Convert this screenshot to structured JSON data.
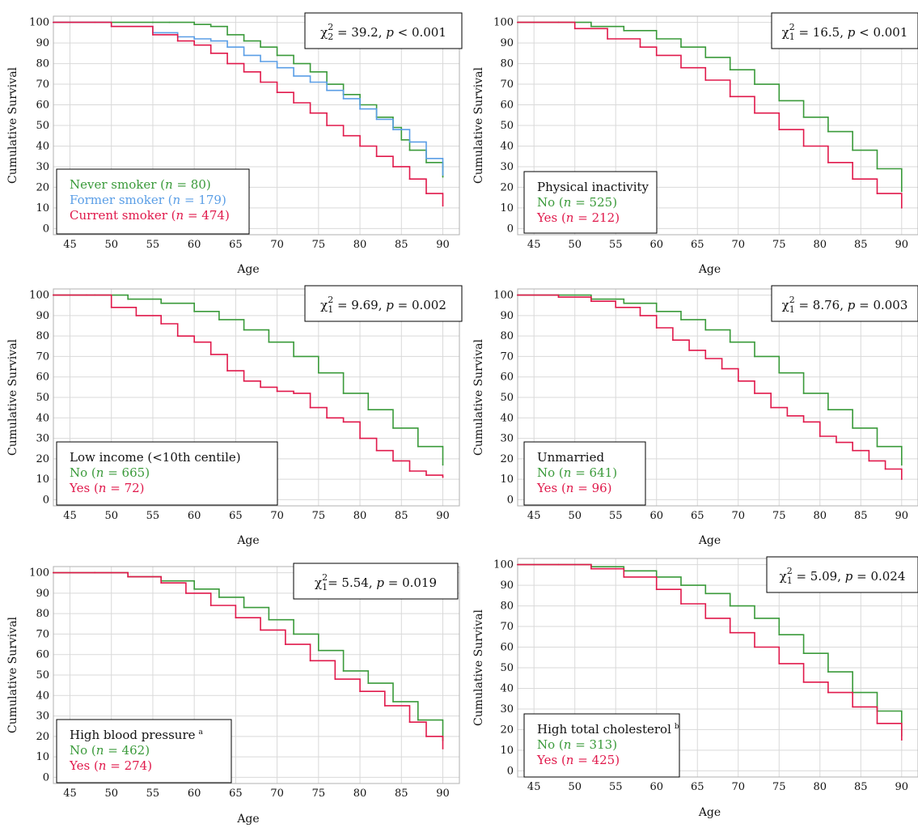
{
  "chart_data": [
    {
      "type": "line",
      "panel": "smoking",
      "xlabel": "Age",
      "ylabel": "Cumulative Survival",
      "xlim": [
        43,
        92
      ],
      "ylim": [
        -3,
        103
      ],
      "xticks": [
        "45",
        "50",
        "55",
        "60",
        "65",
        "70",
        "75",
        "80",
        "85",
        "90"
      ],
      "yticks": [
        "0",
        "10",
        "20",
        "30",
        "40",
        "50",
        "60",
        "70",
        "80",
        "90",
        "100"
      ],
      "grid": true,
      "annotation": {
        "chi": "χ",
        "sub": "2",
        "sup": "2",
        "rest": " = 39.2, ",
        "p": "p",
        "rest2": " < 0.001",
        "placement": "top-right"
      },
      "legend": {
        "placement": "bottom-left",
        "title": "",
        "entries": [
          {
            "pre": "Never smoker (",
            "n": "n",
            "post": " = 80)",
            "color": "#3a9a3a"
          },
          {
            "pre": "Former smoker (",
            "n": "n",
            "post": " = 179)",
            "color": "#5a9ee6"
          },
          {
            "pre": "Current smoker (",
            "n": "n",
            "post": " = 474)",
            "color": "#e0194b"
          }
        ]
      },
      "series": [
        {
          "color": "#3a9a3a",
          "x": [
            43,
            50,
            55,
            57,
            60,
            62,
            64,
            66,
            68,
            70,
            72,
            74,
            76,
            78,
            80,
            82,
            84,
            85,
            86,
            88,
            90
          ],
          "y": [
            100,
            100,
            100,
            100,
            99,
            98,
            94,
            91,
            88,
            84,
            80,
            76,
            70,
            65,
            60,
            54,
            49,
            43,
            38,
            32,
            25
          ]
        },
        {
          "color": "#5a9ee6",
          "x": [
            43,
            48,
            50,
            55,
            58,
            60,
            62,
            64,
            66,
            68,
            70,
            72,
            74,
            76,
            78,
            80,
            82,
            84,
            86,
            88,
            90
          ],
          "y": [
            100,
            100,
            98,
            95,
            93,
            92,
            91,
            88,
            84,
            81,
            78,
            74,
            71,
            67,
            63,
            58,
            53,
            48,
            42,
            34,
            26
          ]
        },
        {
          "color": "#e0194b",
          "x": [
            43,
            48,
            50,
            55,
            58,
            60,
            62,
            64,
            66,
            68,
            70,
            72,
            74,
            76,
            78,
            80,
            82,
            84,
            86,
            88,
            90
          ],
          "y": [
            100,
            100,
            98,
            94,
            91,
            89,
            85,
            80,
            76,
            71,
            66,
            61,
            56,
            50,
            45,
            40,
            35,
            30,
            24,
            17,
            11
          ]
        }
      ]
    },
    {
      "type": "line",
      "panel": "physical-inactivity",
      "xlabel": "Age",
      "ylabel": "Cumulative Survival",
      "xlim": [
        43,
        92
      ],
      "ylim": [
        -3,
        103
      ],
      "xticks": [
        "45",
        "50",
        "55",
        "60",
        "65",
        "70",
        "75",
        "80",
        "85",
        "90"
      ],
      "yticks": [
        "0",
        "10",
        "20",
        "30",
        "40",
        "50",
        "60",
        "70",
        "80",
        "90",
        "100"
      ],
      "grid": true,
      "annotation": {
        "chi": "χ",
        "sub": "1",
        "sup": "2",
        "rest": " = 16.5, ",
        "p": "p",
        "rest2": " < 0.001",
        "placement": "top-right"
      },
      "legend": {
        "placement": "bottom-left",
        "title": "Physical inactivity",
        "entries": [
          {
            "pre": "No (",
            "n": "n",
            "post": " = 525)",
            "color": "#3a9a3a"
          },
          {
            "pre": "Yes (",
            "n": "n",
            "post": " = 212)",
            "color": "#e0194b"
          }
        ]
      },
      "series": [
        {
          "color": "#3a9a3a",
          "x": [
            43,
            48,
            52,
            56,
            60,
            63,
            66,
            69,
            72,
            75,
            78,
            81,
            84,
            87,
            90
          ],
          "y": [
            100,
            100,
            98,
            96,
            92,
            88,
            83,
            77,
            70,
            62,
            54,
            47,
            38,
            29,
            18
          ]
        },
        {
          "color": "#e0194b",
          "x": [
            43,
            48,
            50,
            54,
            58,
            60,
            63,
            66,
            69,
            72,
            75,
            78,
            81,
            84,
            87,
            90
          ],
          "y": [
            100,
            100,
            97,
            92,
            88,
            84,
            78,
            72,
            64,
            56,
            48,
            40,
            32,
            24,
            17,
            10
          ]
        }
      ]
    },
    {
      "type": "line",
      "panel": "low-income",
      "xlabel": "Age",
      "ylabel": "Cumulative Survival",
      "xlim": [
        43,
        92
      ],
      "ylim": [
        -3,
        103
      ],
      "xticks": [
        "45",
        "50",
        "55",
        "60",
        "65",
        "70",
        "75",
        "80",
        "85",
        "90"
      ],
      "yticks": [
        "0",
        "10",
        "20",
        "30",
        "40",
        "50",
        "60",
        "70",
        "80",
        "90",
        "100"
      ],
      "grid": true,
      "annotation": {
        "chi": "χ",
        "sub": "1",
        "sup": "2",
        "rest": " = 9.69, ",
        "p": "p",
        "rest2": " = 0.002",
        "placement": "top-right"
      },
      "legend": {
        "placement": "bottom-left",
        "title": "Low income (<10th centile)",
        "entries": [
          {
            "pre": "No (",
            "n": "n",
            "post": " = 665)",
            "color": "#3a9a3a"
          },
          {
            "pre": "Yes (",
            "n": "n",
            "post": " = 72)",
            "color": "#e0194b"
          }
        ]
      },
      "series": [
        {
          "color": "#3a9a3a",
          "x": [
            43,
            48,
            52,
            56,
            60,
            63,
            66,
            69,
            72,
            75,
            78,
            81,
            84,
            87,
            90
          ],
          "y": [
            100,
            100,
            98,
            96,
            92,
            88,
            83,
            77,
            70,
            62,
            52,
            44,
            35,
            26,
            17
          ]
        },
        {
          "color": "#e0194b",
          "x": [
            43,
            47,
            50,
            53,
            56,
            58,
            60,
            62,
            64,
            66,
            68,
            70,
            72,
            74,
            76,
            78,
            80,
            82,
            84,
            86,
            88,
            90
          ],
          "y": [
            100,
            100,
            94,
            90,
            86,
            80,
            77,
            71,
            63,
            58,
            55,
            53,
            52,
            45,
            40,
            38,
            30,
            24,
            19,
            14,
            12,
            11
          ]
        }
      ]
    },
    {
      "type": "line",
      "panel": "unmarried",
      "xlabel": "Age",
      "ylabel": "Cumulative Survival",
      "xlim": [
        43,
        92
      ],
      "ylim": [
        -3,
        103
      ],
      "xticks": [
        "45",
        "50",
        "55",
        "60",
        "65",
        "70",
        "75",
        "80",
        "85",
        "90"
      ],
      "yticks": [
        "0",
        "10",
        "20",
        "30",
        "40",
        "50",
        "60",
        "70",
        "80",
        "90",
        "100"
      ],
      "grid": true,
      "annotation": {
        "chi": "χ",
        "sub": "1",
        "sup": "2",
        "rest": " = 8.76, ",
        "p": "p",
        "rest2": " = 0.003",
        "placement": "top-right"
      },
      "legend": {
        "placement": "bottom-left",
        "title": "Unmarried",
        "entries": [
          {
            "pre": "No (",
            "n": "n",
            "post": " = 641)",
            "color": "#3a9a3a"
          },
          {
            "pre": "Yes (",
            "n": "n",
            "post": " = 96)",
            "color": "#e0194b"
          }
        ]
      },
      "series": [
        {
          "color": "#3a9a3a",
          "x": [
            43,
            48,
            52,
            56,
            60,
            63,
            66,
            69,
            72,
            75,
            78,
            81,
            84,
            87,
            90
          ],
          "y": [
            100,
            100,
            98,
            96,
            92,
            88,
            83,
            77,
            70,
            62,
            52,
            44,
            35,
            26,
            17
          ]
        },
        {
          "color": "#e0194b",
          "x": [
            43,
            48,
            52,
            55,
            58,
            60,
            62,
            64,
            66,
            68,
            70,
            72,
            74,
            76,
            78,
            80,
            82,
            84,
            86,
            88,
            90
          ],
          "y": [
            100,
            99,
            97,
            94,
            90,
            84,
            78,
            73,
            69,
            64,
            58,
            52,
            45,
            41,
            38,
            31,
            28,
            24,
            19,
            15,
            10
          ]
        }
      ]
    },
    {
      "type": "line",
      "panel": "high-blood-pressure",
      "xlabel": "Age",
      "ylabel": "Cumulative Survival",
      "xlim": [
        43,
        92
      ],
      "ylim": [
        -3,
        103
      ],
      "xticks": [
        "45",
        "50",
        "55",
        "60",
        "65",
        "70",
        "75",
        "80",
        "85",
        "90"
      ],
      "yticks": [
        "0",
        "10",
        "20",
        "30",
        "40",
        "50",
        "60",
        "70",
        "80",
        "90",
        "100"
      ],
      "grid": true,
      "annotation": {
        "chi": "χ",
        "sub": "1",
        "sup": "2",
        "rest": "= 5.54, ",
        "p": "p",
        "rest2": " = 0.019",
        "placement": "top-right"
      },
      "legend": {
        "placement": "bottom-left",
        "title": "High blood pressure",
        "title_mark": "a",
        "entries": [
          {
            "pre": "No (",
            "n": "n",
            "post": " = 462)",
            "color": "#3a9a3a"
          },
          {
            "pre": "Yes (",
            "n": "n",
            "post": " = 274)",
            "color": "#e0194b"
          }
        ]
      },
      "series": [
        {
          "color": "#3a9a3a",
          "x": [
            43,
            48,
            52,
            56,
            60,
            63,
            66,
            69,
            72,
            75,
            78,
            81,
            84,
            87,
            90
          ],
          "y": [
            100,
            100,
            98,
            96,
            92,
            88,
            83,
            77,
            70,
            62,
            52,
            46,
            37,
            28,
            18
          ]
        },
        {
          "color": "#e0194b",
          "x": [
            43,
            48,
            52,
            56,
            59,
            62,
            65,
            68,
            71,
            74,
            77,
            80,
            83,
            86,
            88,
            90
          ],
          "y": [
            100,
            100,
            98,
            95,
            90,
            84,
            78,
            72,
            65,
            57,
            48,
            42,
            35,
            27,
            20,
            14
          ]
        }
      ]
    },
    {
      "type": "line",
      "panel": "high-total-cholesterol",
      "xlabel": "Age",
      "ylabel": "Cumulative Survival",
      "xlim": [
        43,
        92
      ],
      "ylim": [
        -3,
        103
      ],
      "xticks": [
        "45",
        "50",
        "55",
        "60",
        "65",
        "70",
        "75",
        "80",
        "85",
        "90"
      ],
      "yticks": [
        "0",
        "10",
        "20",
        "30",
        "40",
        "50",
        "60",
        "70",
        "80",
        "90",
        "100"
      ],
      "grid": true,
      "annotation": {
        "chi": "χ",
        "sub": "1",
        "sup": "2",
        "rest": " = 5.09, ",
        "p": "p",
        "rest2": " = 0.024",
        "placement": "top-right"
      },
      "legend": {
        "placement": "bottom-left",
        "title": "High total cholesterol",
        "title_mark": "b",
        "entries": [
          {
            "pre": "No (",
            "n": "n",
            "post": " = 313)",
            "color": "#3a9a3a"
          },
          {
            "pre": "Yes (",
            "n": "n",
            "post": " = 425)",
            "color": "#e0194b"
          }
        ]
      },
      "series": [
        {
          "color": "#3a9a3a",
          "x": [
            43,
            48,
            52,
            56,
            60,
            63,
            66,
            69,
            72,
            75,
            78,
            81,
            84,
            87,
            90
          ],
          "y": [
            100,
            100,
            99,
            97,
            94,
            90,
            86,
            80,
            74,
            66,
            57,
            48,
            38,
            29,
            17
          ]
        },
        {
          "color": "#e0194b",
          "x": [
            43,
            48,
            52,
            56,
            60,
            63,
            66,
            69,
            72,
            75,
            78,
            81,
            84,
            87,
            90
          ],
          "y": [
            100,
            100,
            98,
            94,
            88,
            81,
            74,
            67,
            60,
            52,
            43,
            38,
            31,
            23,
            15
          ]
        }
      ]
    }
  ]
}
